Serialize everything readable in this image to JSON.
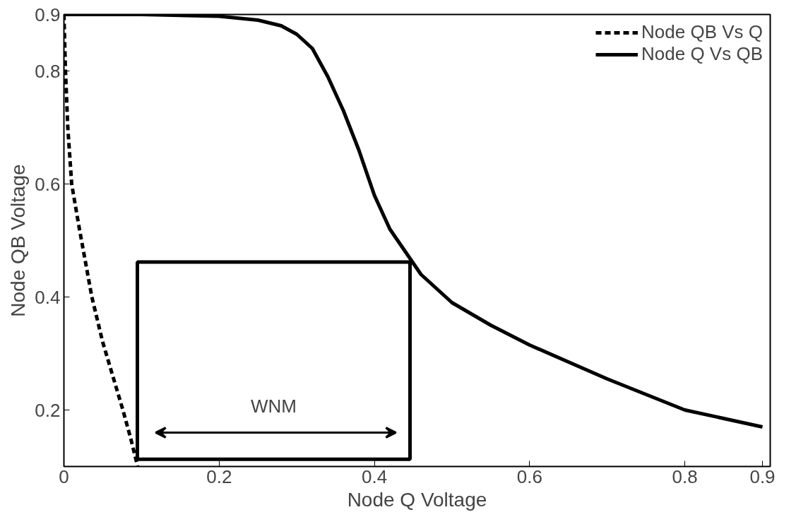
{
  "chart_data": {
    "type": "line",
    "xlabel": "Node Q Voltage",
    "ylabel": "Node QB Voltage",
    "xlim": [
      0,
      0.91
    ],
    "ylim": [
      0.1,
      0.9
    ],
    "xticks": [
      0,
      0.2,
      0.4,
      0.6,
      0.8,
      0.9
    ],
    "yticks": [
      0.2,
      0.4,
      0.6,
      0.8,
      0.9
    ],
    "grid": false,
    "legend": "top right",
    "marker": "none",
    "series": [
      {
        "name": "Node QB Vs Q",
        "color": "#000000",
        "line_style": "dashed",
        "x": [
          0,
          0.002,
          0.005,
          0.01,
          0.02,
          0.036,
          0.05,
          0.063,
          0.076,
          0.086,
          0.095
        ],
        "values": [
          0.9,
          0.8,
          0.7,
          0.6,
          0.52,
          0.4,
          0.32,
          0.26,
          0.2,
          0.15,
          0.1
        ]
      },
      {
        "name": "Node Q Vs QB",
        "color": "#000000",
        "line_style": "solid",
        "x": [
          0,
          0.1,
          0.2,
          0.25,
          0.28,
          0.3,
          0.32,
          0.34,
          0.36,
          0.38,
          0.4,
          0.42,
          0.44,
          0.46,
          0.5,
          0.55,
          0.6,
          0.7,
          0.8,
          0.9
        ],
        "values": [
          0.9,
          0.9,
          0.897,
          0.89,
          0.88,
          0.865,
          0.84,
          0.79,
          0.73,
          0.66,
          0.58,
          0.52,
          0.48,
          0.44,
          0.39,
          0.35,
          0.315,
          0.255,
          0.2,
          0.17
        ]
      }
    ],
    "annotations": [
      "WNM"
    ]
  }
}
